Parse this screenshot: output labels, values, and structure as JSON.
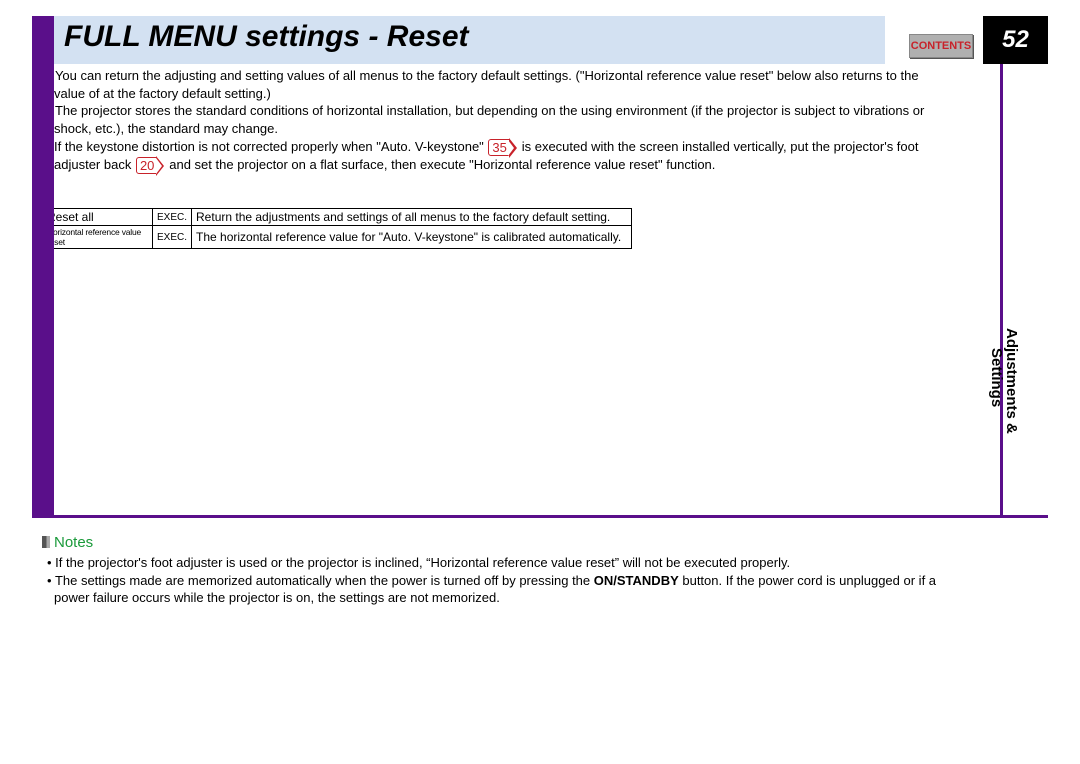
{
  "header": {
    "title": "FULL MENU settings - Reset",
    "contents_label": "CONTENTS",
    "page_number": "52"
  },
  "colors": {
    "purple": "#5a0f8a",
    "header_band": "#d3e1f2",
    "contents_text": "#c8222a",
    "notes_title": "#1a9a3a",
    "page_num_bg": "#000000"
  },
  "body": {
    "b1a": "You can return the adjusting and setting values of all menus to the factory default settings. (\"Horizontal reference value reset\" below also returns to the",
    "b1b": "value of at the factory default setting.)",
    "b2a": "The projector stores the standard conditions of horizontal installation, but depending on the using environment (if the projector is subject to vibrations or",
    "b2b": "shock, etc.), the standard may change.",
    "b3a_pre": "If the keystone distortion is not corrected properly when \"Auto. V-keystone\" ",
    "ref1": "35",
    "b3a_post": " is executed with the screen installed vertically, put the projector's foot",
    "b3b_pre": "adjuster back ",
    "ref2": "20",
    "b3b_post": " and set the projector on a flat surface, then execute \"Horizontal reference value reset\" function."
  },
  "table": {
    "rows": [
      {
        "name": "Reset all",
        "action": "EXEC.",
        "desc": "Return the adjustments and settings of all menus to the factory default setting.",
        "small": false
      },
      {
        "name": "Horizontal reference value reset",
        "action": "EXEC.",
        "desc": "The horizontal reference value for \"Auto. V-keystone\" is calibrated automatically.",
        "small": true
      }
    ]
  },
  "section_tab": {
    "line1": "Adjustments &",
    "line2": "Settings"
  },
  "notes": {
    "title": "Notes",
    "n1": "If the projector's foot adjuster is used or the projector is inclined, “Horizontal reference value reset” will not be executed properly.",
    "n2_pre": "The settings made are memorized automatically when the power is turned off by pressing the ",
    "n2_bold": "ON/STANDBY",
    "n2_mid": " button. If the power cord is unplugged or if a",
    "n2_end": "power failure occurs while the projector is on, the settings are not memorized."
  }
}
